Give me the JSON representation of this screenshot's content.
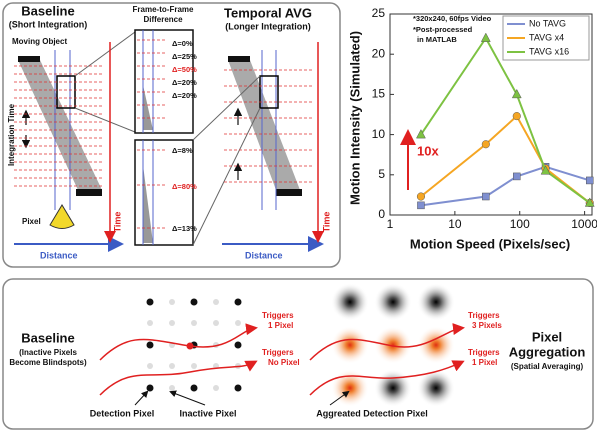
{
  "chart_data": {
    "type": "line",
    "x_label": "Motion Speed (Pixels/sec)",
    "y_label": "Motion Intensity (Simulated)",
    "xscale": "log",
    "xlim": [
      1,
      1300
    ],
    "xticks": [
      1,
      10,
      100,
      1000
    ],
    "ylim": [
      0,
      25
    ],
    "yticks": [
      0,
      5,
      10,
      15,
      20,
      25
    ],
    "legend": "upper right",
    "x": [
      3,
      30,
      90,
      250,
      1200
    ],
    "series": [
      {
        "name": "No TAVG",
        "color": "#7f8fd0",
        "marker": "square",
        "values": [
          1.2,
          2.3,
          4.8,
          6,
          4.3
        ]
      },
      {
        "name": "TAVG x4",
        "color": "#f5a623",
        "marker": "circle",
        "values": [
          2.3,
          8.8,
          12.3,
          5.8,
          1.5
        ]
      },
      {
        "name": "TAVG x16",
        "color": "#7dc242",
        "marker": "triangle",
        "values": [
          10,
          22,
          15,
          5.5,
          1.5
        ]
      }
    ],
    "annotations": [
      "*320x240, 60fps Video",
      "*Post-processed",
      "in MATLAB",
      "10x"
    ]
  },
  "top_panel": {
    "baseline_title": "Baseline",
    "baseline_subtitle": "(Short Integration)",
    "moving_object": "Moving Object",
    "integration_time": "Integration Time",
    "pixel": "Pixel",
    "distance": [
      "Distance",
      "Distance"
    ],
    "time": [
      "Time",
      "Time"
    ],
    "difference_title": [
      "Frame-to-Frame",
      "Difference"
    ],
    "differences_baseline": [
      "Δ=0%",
      "Δ=25%",
      "Δ=50%",
      "Δ=20%",
      "Δ=20%"
    ],
    "differences_tavg": [
      "Δ=8%",
      "Δ=80%",
      "Δ=13%"
    ],
    "tavg_title": "Temporal AVG",
    "tavg_subtitle": "(Longer Integration)"
  },
  "bottom_panel": {
    "baseline_title": "Baseline",
    "baseline_subtitle": [
      "(Inactive Pixels",
      "Become Blindspots)"
    ],
    "baseline_triggers": [
      [
        "Triggers",
        "1 Pixel"
      ],
      [
        "Triggers",
        "No Pixel"
      ]
    ],
    "detection_pixel": "Detection Pixel",
    "inactive_pixel": "Inactive Pixel",
    "aggregation_triggers": [
      [
        "Triggers",
        "3 Pixels"
      ],
      [
        "Triggers",
        "1 Pixel"
      ]
    ],
    "aggregated_pixel": "Aggreated Detection Pixel",
    "aggregation_title": [
      "Pixel",
      "Aggregation"
    ],
    "aggregation_subtitle": "(Spatial Averaging)"
  }
}
